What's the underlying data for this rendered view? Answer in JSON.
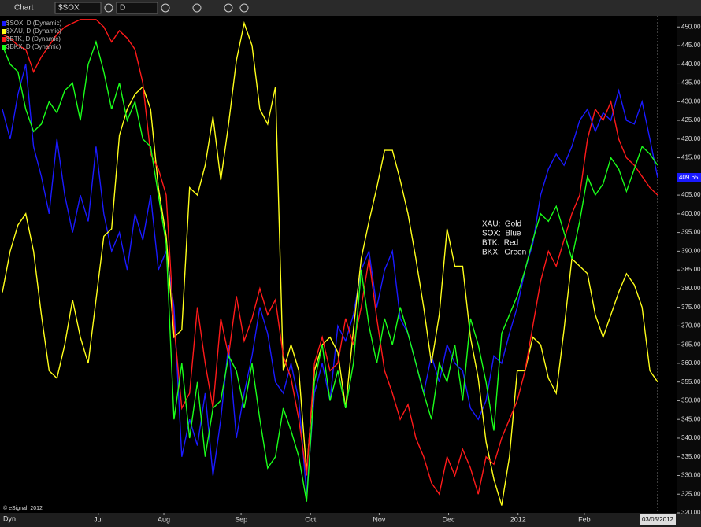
{
  "toolbar": {
    "title": "Chart",
    "symbol": "$SOX",
    "interval": "D"
  },
  "chart_data": {
    "type": "line",
    "series": [
      {
        "name": "$SOX, D (Dynamic)",
        "color": "#1a1aff",
        "values": [
          428,
          420,
          432,
          440,
          418,
          410,
          400,
          420,
          405,
          395,
          405,
          398,
          418,
          400,
          390,
          395,
          385,
          400,
          393,
          405,
          385,
          390,
          375,
          335,
          345,
          338,
          352,
          330,
          345,
          365,
          340,
          352,
          362,
          375,
          368,
          355,
          352,
          360,
          350,
          325,
          352,
          360,
          350,
          370,
          366,
          373,
          385,
          390,
          375,
          385,
          390,
          372,
          368,
          360,
          352,
          362,
          355,
          365,
          360,
          358,
          348,
          345,
          350,
          362,
          360,
          368,
          375,
          385,
          392,
          405,
          412,
          416,
          413,
          418,
          425,
          428,
          422,
          427,
          425,
          433,
          425,
          424,
          430,
          420,
          409.65
        ]
      },
      {
        "name": "$XAU, D (Dynamic)",
        "color": "#ffff1a",
        "values": [
          379,
          390,
          397,
          400,
          390,
          373,
          358,
          356,
          365,
          377,
          367,
          360,
          377,
          394,
          396,
          421,
          428,
          432,
          434,
          428,
          407,
          394,
          367,
          369,
          407,
          405,
          413,
          426,
          409,
          424,
          441,
          451,
          445,
          428,
          424,
          434,
          358,
          365,
          358,
          331,
          358,
          365,
          367,
          363,
          348,
          369,
          388,
          398,
          407,
          417,
          417,
          409,
          400,
          388,
          375,
          360,
          373,
          396,
          386,
          386,
          367,
          356,
          339,
          329,
          322,
          335,
          358,
          358,
          367,
          365,
          356,
          352,
          369,
          388,
          386,
          384,
          373,
          367,
          373,
          379,
          384,
          381,
          375,
          358,
          355
        ]
      },
      {
        "name": "$BTK, D (Dynamic)",
        "color": "#ff1a1a",
        "values": [
          448,
          447,
          445,
          444,
          438,
          442,
          445,
          448,
          450,
          451,
          452,
          452,
          452,
          450,
          446,
          449,
          447,
          444,
          435,
          416,
          412,
          405,
          370,
          348,
          352,
          375,
          360,
          348,
          372,
          362,
          378,
          366,
          372,
          380,
          373,
          377,
          362,
          356,
          345,
          330,
          360,
          367,
          358,
          360,
          372,
          365,
          375,
          388,
          372,
          358,
          352,
          345,
          349,
          340,
          335,
          328,
          325,
          335,
          330,
          337,
          332,
          325,
          335,
          333,
          340,
          345,
          350,
          358,
          370,
          382,
          390,
          386,
          393,
          400,
          405,
          420,
          428,
          425,
          430,
          420,
          415,
          413,
          410,
          407,
          405
        ]
      },
      {
        "name": "$BKX, D (Dynamic)",
        "color": "#1aff1a",
        "values": [
          445,
          440,
          438,
          428,
          422,
          424,
          430,
          427,
          433,
          435,
          425,
          440,
          446,
          438,
          428,
          435,
          425,
          430,
          420,
          418,
          405,
          392,
          345,
          360,
          340,
          355,
          335,
          348,
          350,
          362,
          358,
          348,
          360,
          345,
          332,
          335,
          348,
          342,
          335,
          323,
          355,
          365,
          350,
          358,
          348,
          360,
          385,
          370,
          360,
          372,
          365,
          375,
          368,
          360,
          352,
          345,
          360,
          355,
          365,
          350,
          372,
          365,
          355,
          342,
          368,
          373,
          378,
          385,
          393,
          400,
          398,
          402,
          395,
          388,
          398,
          410,
          405,
          408,
          415,
          412,
          406,
          412,
          418,
          416,
          413
        ]
      }
    ],
    "xlim": [
      0,
      84
    ],
    "xticks": [
      {
        "value": 12.3,
        "label": "Jul"
      },
      {
        "value": 20.7,
        "label": "Aug"
      },
      {
        "value": 30.6,
        "label": "Sep"
      },
      {
        "value": 39.5,
        "label": "Oct"
      },
      {
        "value": 48.3,
        "label": "Nov"
      },
      {
        "value": 57.2,
        "label": "Dec"
      },
      {
        "value": 66.1,
        "label": "2012"
      },
      {
        "value": 74.6,
        "label": "Feb"
      }
    ],
    "last_date": "03/05/2012",
    "ylim": [
      320,
      453
    ],
    "yticks": [
      {
        "value": 450,
        "label": "450.00"
      },
      {
        "value": 445,
        "label": "445.00"
      },
      {
        "value": 440,
        "label": "440.00"
      },
      {
        "value": 435,
        "label": "435.00"
      },
      {
        "value": 430,
        "label": "430.00"
      },
      {
        "value": 425,
        "label": "425.00"
      },
      {
        "value": 420,
        "label": "420.00"
      },
      {
        "value": 415,
        "label": "415.00"
      },
      {
        "value": 410,
        "label": "410.00"
      },
      {
        "value": 405,
        "label": "405.00"
      },
      {
        "value": 400,
        "label": "400.00"
      },
      {
        "value": 395,
        "label": "395.00"
      },
      {
        "value": 390,
        "label": "390.00"
      },
      {
        "value": 385,
        "label": "385.00"
      },
      {
        "value": 380,
        "label": "380.00"
      },
      {
        "value": 375,
        "label": "375.00"
      },
      {
        "value": 370,
        "label": "370.00"
      },
      {
        "value": 365,
        "label": "365.00"
      },
      {
        "value": 360,
        "label": "360.00"
      },
      {
        "value": 355,
        "label": "355.00"
      },
      {
        "value": 350,
        "label": "350.00"
      },
      {
        "value": 345,
        "label": "345.00"
      },
      {
        "value": 340,
        "label": "340.00"
      },
      {
        "value": 335,
        "label": "335.00"
      },
      {
        "value": 330,
        "label": "330.00"
      },
      {
        "value": 325,
        "label": "325.00"
      },
      {
        "value": 320,
        "label": "320.00"
      }
    ],
    "annotations": [
      "XAU:  Gold",
      "SOX:  Blue",
      "BTK:  Red",
      "BKX:  Green"
    ],
    "copyright": "© eSignal, 2012"
  },
  "footer": {
    "mode": "Dyn"
  }
}
